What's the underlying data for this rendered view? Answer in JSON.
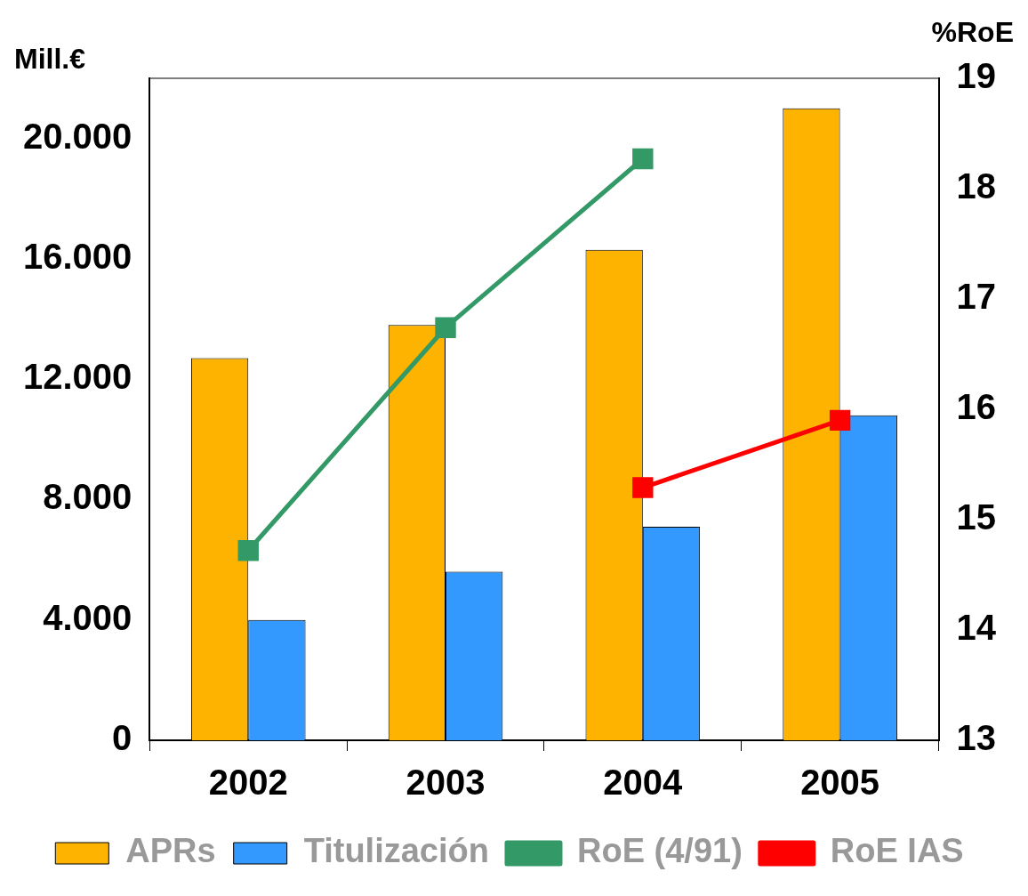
{
  "chart_data": {
    "type": "bar",
    "ylabel": "Mill.€",
    "y2label": "%RoE",
    "categories": [
      "2002",
      "2003",
      "2004",
      "2005"
    ],
    "series": [
      {
        "name": "APRs",
        "color": "#fdb300",
        "values": [
          12700,
          13800,
          16300,
          21000
        ]
      },
      {
        "name": "Titulización",
        "color": "#3399ff",
        "values": [
          4000,
          5600,
          7100,
          10800
        ]
      },
      {
        "name": "RoE (4/91)",
        "type": "line",
        "axis": "y2",
        "color": "#339966",
        "values": [
          14.72,
          16.74,
          18.27,
          null
        ]
      },
      {
        "name": "RoE IAS",
        "type": "line",
        "axis": "y2",
        "color": "#ff0000",
        "values": [
          null,
          null,
          15.29,
          15.9
        ]
      }
    ],
    "ylim": [
      0,
      22000
    ],
    "yticks": [
      {
        "value": 0,
        "label": "0"
      },
      {
        "value": 4000,
        "label": "4.000"
      },
      {
        "value": 8000,
        "label": "8.000"
      },
      {
        "value": 12000,
        "label": "12.000"
      },
      {
        "value": 16000,
        "label": "16.000"
      },
      {
        "value": 20000,
        "label": "20.000"
      }
    ],
    "y2lim": [
      13,
      19
    ],
    "y2ticks": [
      13,
      14,
      15,
      16,
      17,
      18,
      19
    ],
    "marker": "square",
    "legend": "bottom"
  }
}
